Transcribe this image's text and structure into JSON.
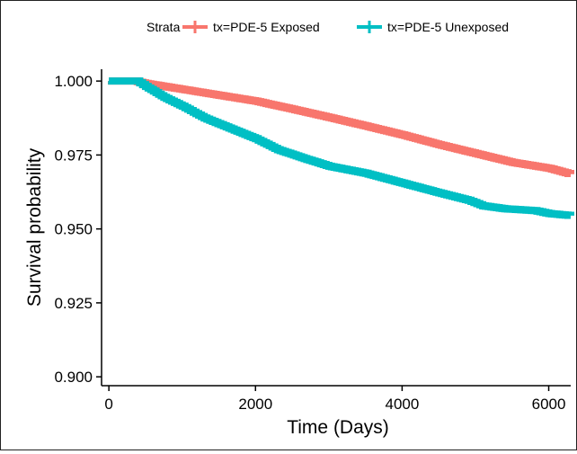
{
  "chart_data": {
    "type": "line",
    "subtype": "kaplan-meier step curve",
    "title": "",
    "xlabel": "Time (Days)",
    "ylabel": "Survival probability",
    "xlim": [
      -100,
      6300
    ],
    "ylim": [
      0.897,
      1.004
    ],
    "x_ticks": [
      0,
      2000,
      4000,
      6000
    ],
    "x_tick_labels": [
      "0",
      "2000",
      "4000",
      "6000"
    ],
    "y_ticks": [
      0.9,
      0.925,
      0.95,
      0.975,
      1.0
    ],
    "y_tick_labels": [
      "0.900",
      "0.925",
      "0.950",
      "0.975",
      "1.000"
    ],
    "grid": false,
    "legend": {
      "title": "Strata",
      "placement": "top",
      "entries": [
        "tx=PDE-5 Exposed",
        "tx=PDE-5 Unexposed"
      ]
    },
    "series": [
      {
        "name": "tx=PDE-5 Exposed",
        "color": "#F8766D",
        "x": [
          0,
          350,
          500,
          1000,
          1500,
          2000,
          2500,
          3000,
          3500,
          4000,
          4500,
          5000,
          5500,
          6000,
          6300
        ],
        "y": [
          1.0,
          1.0,
          0.9992,
          0.9972,
          0.9952,
          0.9932,
          0.9905,
          0.9877,
          0.9848,
          0.9818,
          0.9785,
          0.9755,
          0.9725,
          0.9705,
          0.9685
        ]
      },
      {
        "name": "tx=PDE-5 Unexposed",
        "color": "#00BFC4",
        "x": [
          0,
          380,
          500,
          750,
          1000,
          1300,
          1600,
          2000,
          2300,
          2700,
          3000,
          3500,
          4000,
          4500,
          4900,
          5100,
          5400,
          5800,
          6000,
          6300
        ],
        "y": [
          1.0,
          1.0,
          0.9982,
          0.9945,
          0.9915,
          0.9875,
          0.9845,
          0.9805,
          0.9768,
          0.9735,
          0.9712,
          0.9688,
          0.9655,
          0.9622,
          0.9597,
          0.9578,
          0.9568,
          0.9562,
          0.9552,
          0.9545
        ]
      }
    ]
  }
}
